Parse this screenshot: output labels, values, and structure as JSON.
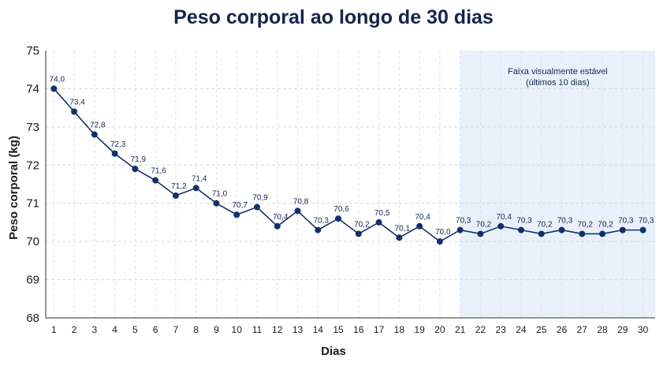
{
  "chart_data": {
    "type": "line",
    "title": "Peso corporal ao longo de 30 dias",
    "xlabel": "Dias",
    "ylabel": "Peso corporal (kg)",
    "x": [
      1,
      2,
      3,
      4,
      5,
      6,
      7,
      8,
      9,
      10,
      11,
      12,
      13,
      14,
      15,
      16,
      17,
      18,
      19,
      20,
      21,
      22,
      23,
      24,
      25,
      26,
      27,
      28,
      29,
      30
    ],
    "values": [
      74.0,
      73.4,
      72.8,
      72.3,
      71.9,
      71.6,
      71.2,
      71.4,
      71.0,
      70.7,
      70.9,
      70.4,
      70.8,
      70.3,
      70.6,
      70.2,
      70.5,
      70.1,
      70.4,
      70.0,
      70.3,
      70.2,
      70.4,
      70.3,
      70.2,
      70.3,
      70.2,
      70.2,
      70.3,
      70.3
    ],
    "data_labels": [
      "74,0",
      "73,4",
      "72,8",
      "72,3",
      "71,9",
      "71,6",
      "71,2",
      "71,4",
      "71,0",
      "70,7",
      "70,9",
      "70,4",
      "70,8",
      "70,3",
      "70,6",
      "70,2",
      "70,5",
      "70,1",
      "70,4",
      "70,0",
      "70,3",
      "70,2",
      "70,4",
      "70,3",
      "70,2",
      "70,3",
      "70,2",
      "70,2",
      "70,3",
      "70,3"
    ],
    "x_tick_labels": [
      "1",
      "2",
      "3",
      "4",
      "5",
      "6",
      "7",
      "8",
      "9",
      "10",
      "11",
      "12",
      "13",
      "14",
      "15",
      "16",
      "17",
      "18",
      "19",
      "20",
      "21",
      "22",
      "23",
      "24",
      "25",
      "26",
      "27",
      "28",
      "29",
      "30"
    ],
    "y_tick_labels": [
      "68",
      "69",
      "70",
      "71",
      "72",
      "73",
      "74",
      "75"
    ],
    "ylim": [
      68,
      75
    ],
    "xlim": [
      0.6,
      30.6
    ],
    "grid": true,
    "shaded_band": {
      "x_start": 21,
      "x_end": 30.6,
      "label_line1": "Faixa visualmente estável",
      "label_line2": "(últimos 10 dias)",
      "color": "#e8f0fa"
    },
    "line_color": "#14306b",
    "marker_color": "#14306b"
  }
}
